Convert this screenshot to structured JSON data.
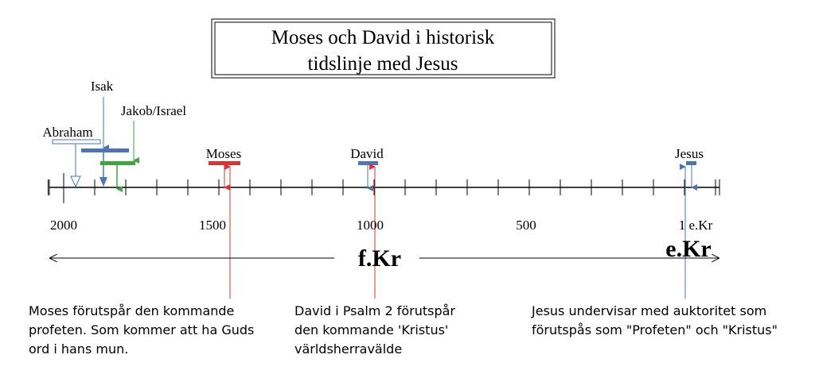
{
  "title": {
    "lines": [
      "Moses och David i historisk",
      "tidslinje med Jesus"
    ]
  },
  "people": {
    "abraham": "Abraham",
    "isak": "Isak",
    "jakob": "Jakob/Israel",
    "moses": "Moses",
    "david": "David",
    "jesus": "Jesus"
  },
  "axis_labels": [
    "2000",
    "1500",
    "1000",
    "500",
    "1 e.Kr"
  ],
  "eras": {
    "before": "f.Kr",
    "after": "e.Kr"
  },
  "notes": {
    "moses": [
      "Moses förutspår den kommande",
      "profeten. Som kommer att ha Guds",
      "ord i hans mun."
    ],
    "david": [
      "David i Psalm 2 förutspår",
      "den kommande 'Kristus'",
      "världsherravälde"
    ],
    "jesus": [
      "Jesus undervisar med auktoritet som",
      "förutspås som \"Profeten\" och \"Kristus\""
    ]
  }
}
